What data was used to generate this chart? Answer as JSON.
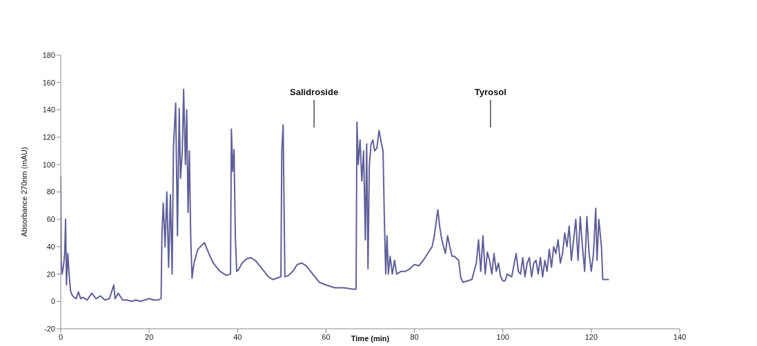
{
  "chart_data": {
    "type": "line",
    "xlabel": "Time (min)",
    "ylabel": "Absorbance 270nm (mAU)",
    "xlim": [
      0,
      140
    ],
    "xticks": [
      0,
      20,
      40,
      60,
      80,
      100,
      120,
      140
    ],
    "ylim": [
      -20,
      180
    ],
    "yticks": [
      -20,
      0,
      20,
      40,
      60,
      80,
      100,
      120,
      140,
      160,
      180
    ],
    "grid": false,
    "legend": false,
    "marker": "none",
    "line_style": "solid",
    "ref_lines": [
      {
        "axis": "x",
        "value": 57.3,
        "label": "Salidroside",
        "color": "#333333"
      },
      {
        "axis": "x",
        "value": 97.2,
        "label": "Tyrosol",
        "color": "#333333"
      }
    ],
    "series": [
      {
        "color": "#5f5f99",
        "x": [
          0,
          0.1,
          0.3,
          0.6,
          0.9,
          1.1,
          1.3,
          1.6,
          1.9,
          2.2,
          2.5,
          3,
          3.5,
          4,
          4.5,
          5,
          6,
          7,
          8,
          9,
          10,
          11,
          12,
          12.3,
          13,
          14,
          15,
          16,
          17,
          18,
          19,
          20,
          21,
          22,
          22.7,
          22.9,
          23.2,
          23.6,
          24,
          24.4,
          24.8,
          25.2,
          25.5,
          26,
          26.4,
          26.8,
          27.1,
          27.5,
          27.8,
          28.2,
          28.5,
          28.8,
          29.1,
          29.4,
          29.7,
          30,
          30.3,
          31,
          32.5,
          33.5,
          34.5,
          36,
          37.5,
          38.4,
          38.6,
          38.9,
          39.2,
          39.5,
          39.8,
          40.2,
          41,
          42,
          43,
          44,
          45,
          46,
          47,
          48,
          49.8,
          50,
          50.3,
          50.7,
          51.5,
          52.5,
          53.5,
          54.5,
          55.5,
          56.5,
          57.5,
          58.5,
          60,
          62,
          64,
          66,
          66.8,
          67,
          67.3,
          67.7,
          68.1,
          68.5,
          68.9,
          69.2,
          69.5,
          69.8,
          70.2,
          70.6,
          71,
          71.5,
          72,
          72.5,
          72.9,
          73.2,
          73.5,
          73.8,
          74.1,
          74.5,
          75,
          75.5,
          76,
          77,
          78,
          79,
          80,
          81,
          82,
          83,
          84,
          84.5,
          85,
          85.3,
          85.7,
          86.2,
          87,
          87.5,
          88,
          88.5,
          89,
          90,
          90.5,
          91,
          92,
          93,
          94,
          94.5,
          95,
          95.5,
          96,
          96.5,
          97,
          97.5,
          98,
          98.5,
          99,
          99.5,
          100,
          100.5,
          101,
          102,
          103,
          103.5,
          104,
          104.5,
          105,
          105.5,
          106,
          106.5,
          107,
          107.5,
          108,
          108.5,
          109,
          109.5,
          110,
          110.5,
          111,
          111.5,
          112,
          112.5,
          113,
          113.5,
          114,
          114.5,
          115,
          115.5,
          116,
          116.5,
          117,
          117.5,
          118,
          118.5,
          119,
          119.5,
          120,
          120.5,
          121,
          121.3,
          121.7,
          122,
          122.3,
          122.6,
          123,
          124
        ],
        "values": [
          92,
          30,
          20,
          25,
          35,
          60,
          12,
          35,
          20,
          8,
          5,
          3,
          2,
          7,
          2,
          3,
          1,
          6,
          2,
          4,
          1,
          2,
          12,
          2,
          6,
          1,
          1,
          0,
          1,
          0,
          1,
          2,
          1,
          1,
          2,
          50,
          72,
          40,
          80,
          25,
          78,
          20,
          113,
          145,
          48,
          141,
          90,
          110,
          155,
          100,
          140,
          65,
          110,
          47,
          17,
          25,
          30,
          38,
          43,
          35,
          28,
          22,
          19,
          20,
          126,
          95,
          111,
          47,
          22,
          23,
          28,
          31,
          32,
          30,
          26,
          22,
          18,
          16,
          18,
          110,
          129,
          18,
          19,
          22,
          27,
          28,
          26,
          22,
          18,
          14,
          12,
          10,
          10,
          9,
          9,
          131,
          100,
          118,
          88,
          110,
          45,
          115,
          24,
          100,
          115,
          118,
          110,
          112,
          125,
          116,
          110,
          60,
          20,
          48,
          20,
          33,
          20,
          30,
          20,
          22,
          22,
          24,
          27,
          26,
          30,
          35,
          40,
          48,
          60,
          67,
          55,
          45,
          35,
          48,
          40,
          33,
          33,
          30,
          17,
          14,
          15,
          16,
          28,
          45,
          22,
          48,
          20,
          36,
          30,
          20,
          35,
          22,
          28,
          18,
          15,
          15,
          20,
          18,
          35,
          22,
          20,
          32,
          18,
          28,
          32,
          18,
          28,
          30,
          20,
          32,
          18,
          30,
          22,
          38,
          25,
          40,
          35,
          45,
          28,
          35,
          50,
          40,
          55,
          30,
          45,
          60,
          30,
          62,
          40,
          22,
          62,
          35,
          22,
          35,
          68,
          30,
          60,
          50,
          40,
          16,
          16,
          16
        ]
      }
    ]
  }
}
